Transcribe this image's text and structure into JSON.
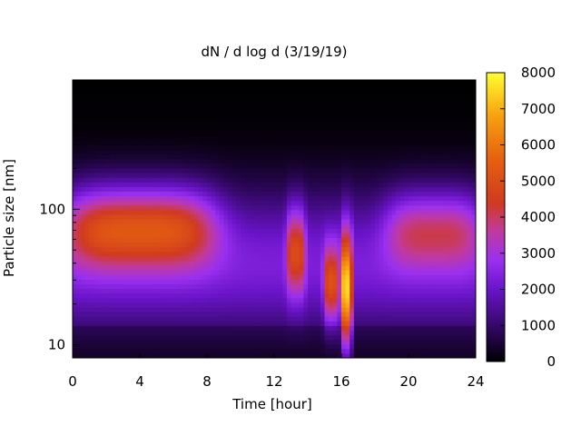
{
  "chart_data": {
    "type": "heatmap",
    "title": "dN / d log d (3/19/19)",
    "xlabel": "Time [hour]",
    "ylabel": "Particle size [nm]",
    "xlim": [
      0,
      24
    ],
    "x_ticks": [
      0,
      4,
      8,
      12,
      16,
      20,
      24
    ],
    "y_scale": "log",
    "ylim_nm": [
      8,
      900
    ],
    "y_tick_labels": [
      "10",
      "100"
    ],
    "colorbar": {
      "range": [
        0,
        8000
      ],
      "ticks": [
        0,
        1000,
        2000,
        3000,
        4000,
        5000,
        6000,
        7000,
        8000
      ],
      "colormap": [
        "#000000",
        "#3d0a7a",
        "#8a25e8",
        "#b83fd6",
        "#e0492e",
        "#f08010",
        "#ffff30"
      ]
    },
    "features": [
      {
        "time_range": [
          0,
          8
        ],
        "size_nm": [
          40,
          140
        ],
        "peak_value": 5500
      },
      {
        "time_range": [
          12.8,
          13.8
        ],
        "size_nm": [
          25,
          100
        ],
        "peak_value": 4700
      },
      {
        "time_range": [
          15,
          15.8
        ],
        "size_nm": [
          15,
          50
        ],
        "peak_value": 5000
      },
      {
        "time_range": [
          16,
          16.6
        ],
        "size_nm": [
          10,
          60
        ],
        "peak_value": 7500
      },
      {
        "time_range": [
          19,
          24
        ],
        "size_nm": [
          40,
          130
        ],
        "peak_value": 4200
      }
    ],
    "grid": false,
    "legend": "none"
  }
}
